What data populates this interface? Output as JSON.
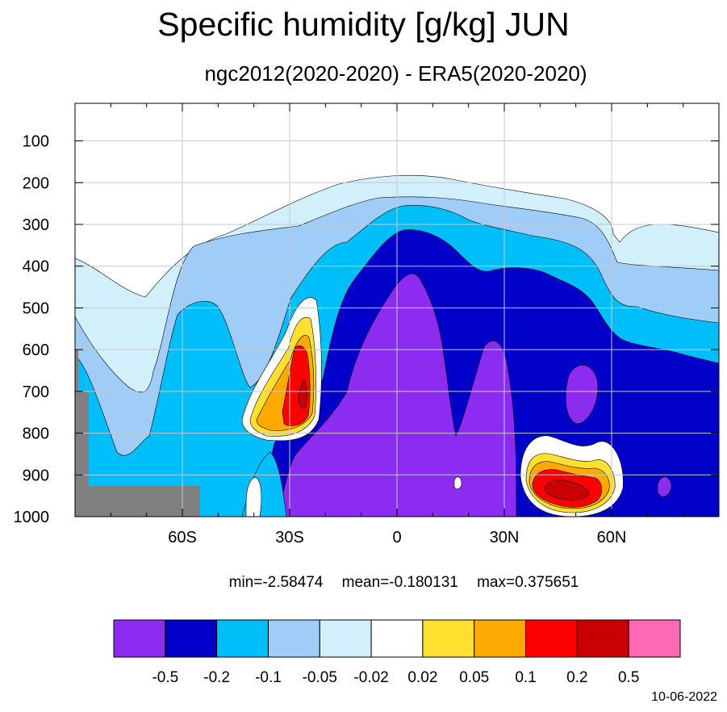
{
  "title": "Specific humidity [g/kg] JUN",
  "subtitle": "ngc2012(2020-2020) - ERA5(2020-2020)",
  "stats": {
    "min": "min=-2.58474",
    "mean": "mean=-0.180131",
    "max": "max=0.375651"
  },
  "date": "10-06-2022",
  "chart_data": {
    "type": "heatmap",
    "title": "Specific humidity [g/kg] JUN",
    "subtitle": "ngc2012(2020-2020) - ERA5(2020-2020)",
    "xlabel": "",
    "ylabel": "",
    "x_axis": {
      "range": [
        -90,
        90
      ],
      "ticks": [
        -60,
        -30,
        0,
        30,
        60
      ],
      "tick_labels": [
        "60S",
        "30S",
        "0",
        "30N",
        "60N"
      ],
      "grid": true
    },
    "y_axis": {
      "range": [
        1000,
        10
      ],
      "ticks": [
        100,
        200,
        300,
        400,
        500,
        600,
        700,
        800,
        900,
        1000
      ],
      "tick_labels": [
        "100",
        "200",
        "300",
        "400",
        "500",
        "600",
        "700",
        "800",
        "900",
        "1000"
      ],
      "grid": true
    },
    "colorbar": {
      "levels": [
        "-0.5",
        "-0.2",
        "-0.1",
        "-0.05",
        "-0.02",
        "0.02",
        "0.05",
        "0.1",
        "0.2",
        "0.5"
      ],
      "colors": [
        "#8c2cf0",
        "#0000c8",
        "#00bef9",
        "#a0cdf8",
        "#d2f0fc",
        "#ffffff",
        "#ffe030",
        "#ffaa00",
        "#ff0000",
        "#c80000",
        "#ff69b4"
      ]
    },
    "missing_color": "#808080",
    "contour_regions": [
      {
        "level": "-0.02",
        "shape": [
          [
            -90,
            380
          ],
          [
            -86,
            390
          ],
          [
            -78,
            420
          ],
          [
            -66,
            470
          ],
          [
            -60,
            430
          ],
          [
            -45,
            360
          ],
          [
            -30,
            300
          ],
          [
            -15,
            235
          ],
          [
            0,
            190
          ],
          [
            15,
            182
          ],
          [
            30,
            195
          ],
          [
            45,
            230
          ],
          [
            60,
            270
          ],
          [
            65,
            320
          ],
          [
            68,
            300
          ],
          [
            90,
            320
          ],
          [
            90,
            1000
          ],
          [
            -90,
            1000
          ]
        ]
      },
      {
        "level": "-0.05",
        "shape": [
          [
            -90,
            520
          ],
          [
            -86,
            620
          ],
          [
            -78,
            660
          ],
          [
            -70,
            720
          ],
          [
            -66,
            600
          ],
          [
            -60,
            380
          ],
          [
            -45,
            320
          ],
          [
            -30,
            260
          ],
          [
            -15,
            240
          ],
          [
            0,
            236
          ],
          [
            15,
            240
          ],
          [
            30,
            250
          ],
          [
            45,
            260
          ],
          [
            60,
            280
          ],
          [
            66,
            290
          ],
          [
            90,
            290
          ],
          [
            90,
            1000
          ],
          [
            -90,
            1000
          ]
        ]
      }
    ],
    "extremes": {
      "min": -2.58474,
      "mean": -0.180131,
      "max": 0.375651
    }
  }
}
